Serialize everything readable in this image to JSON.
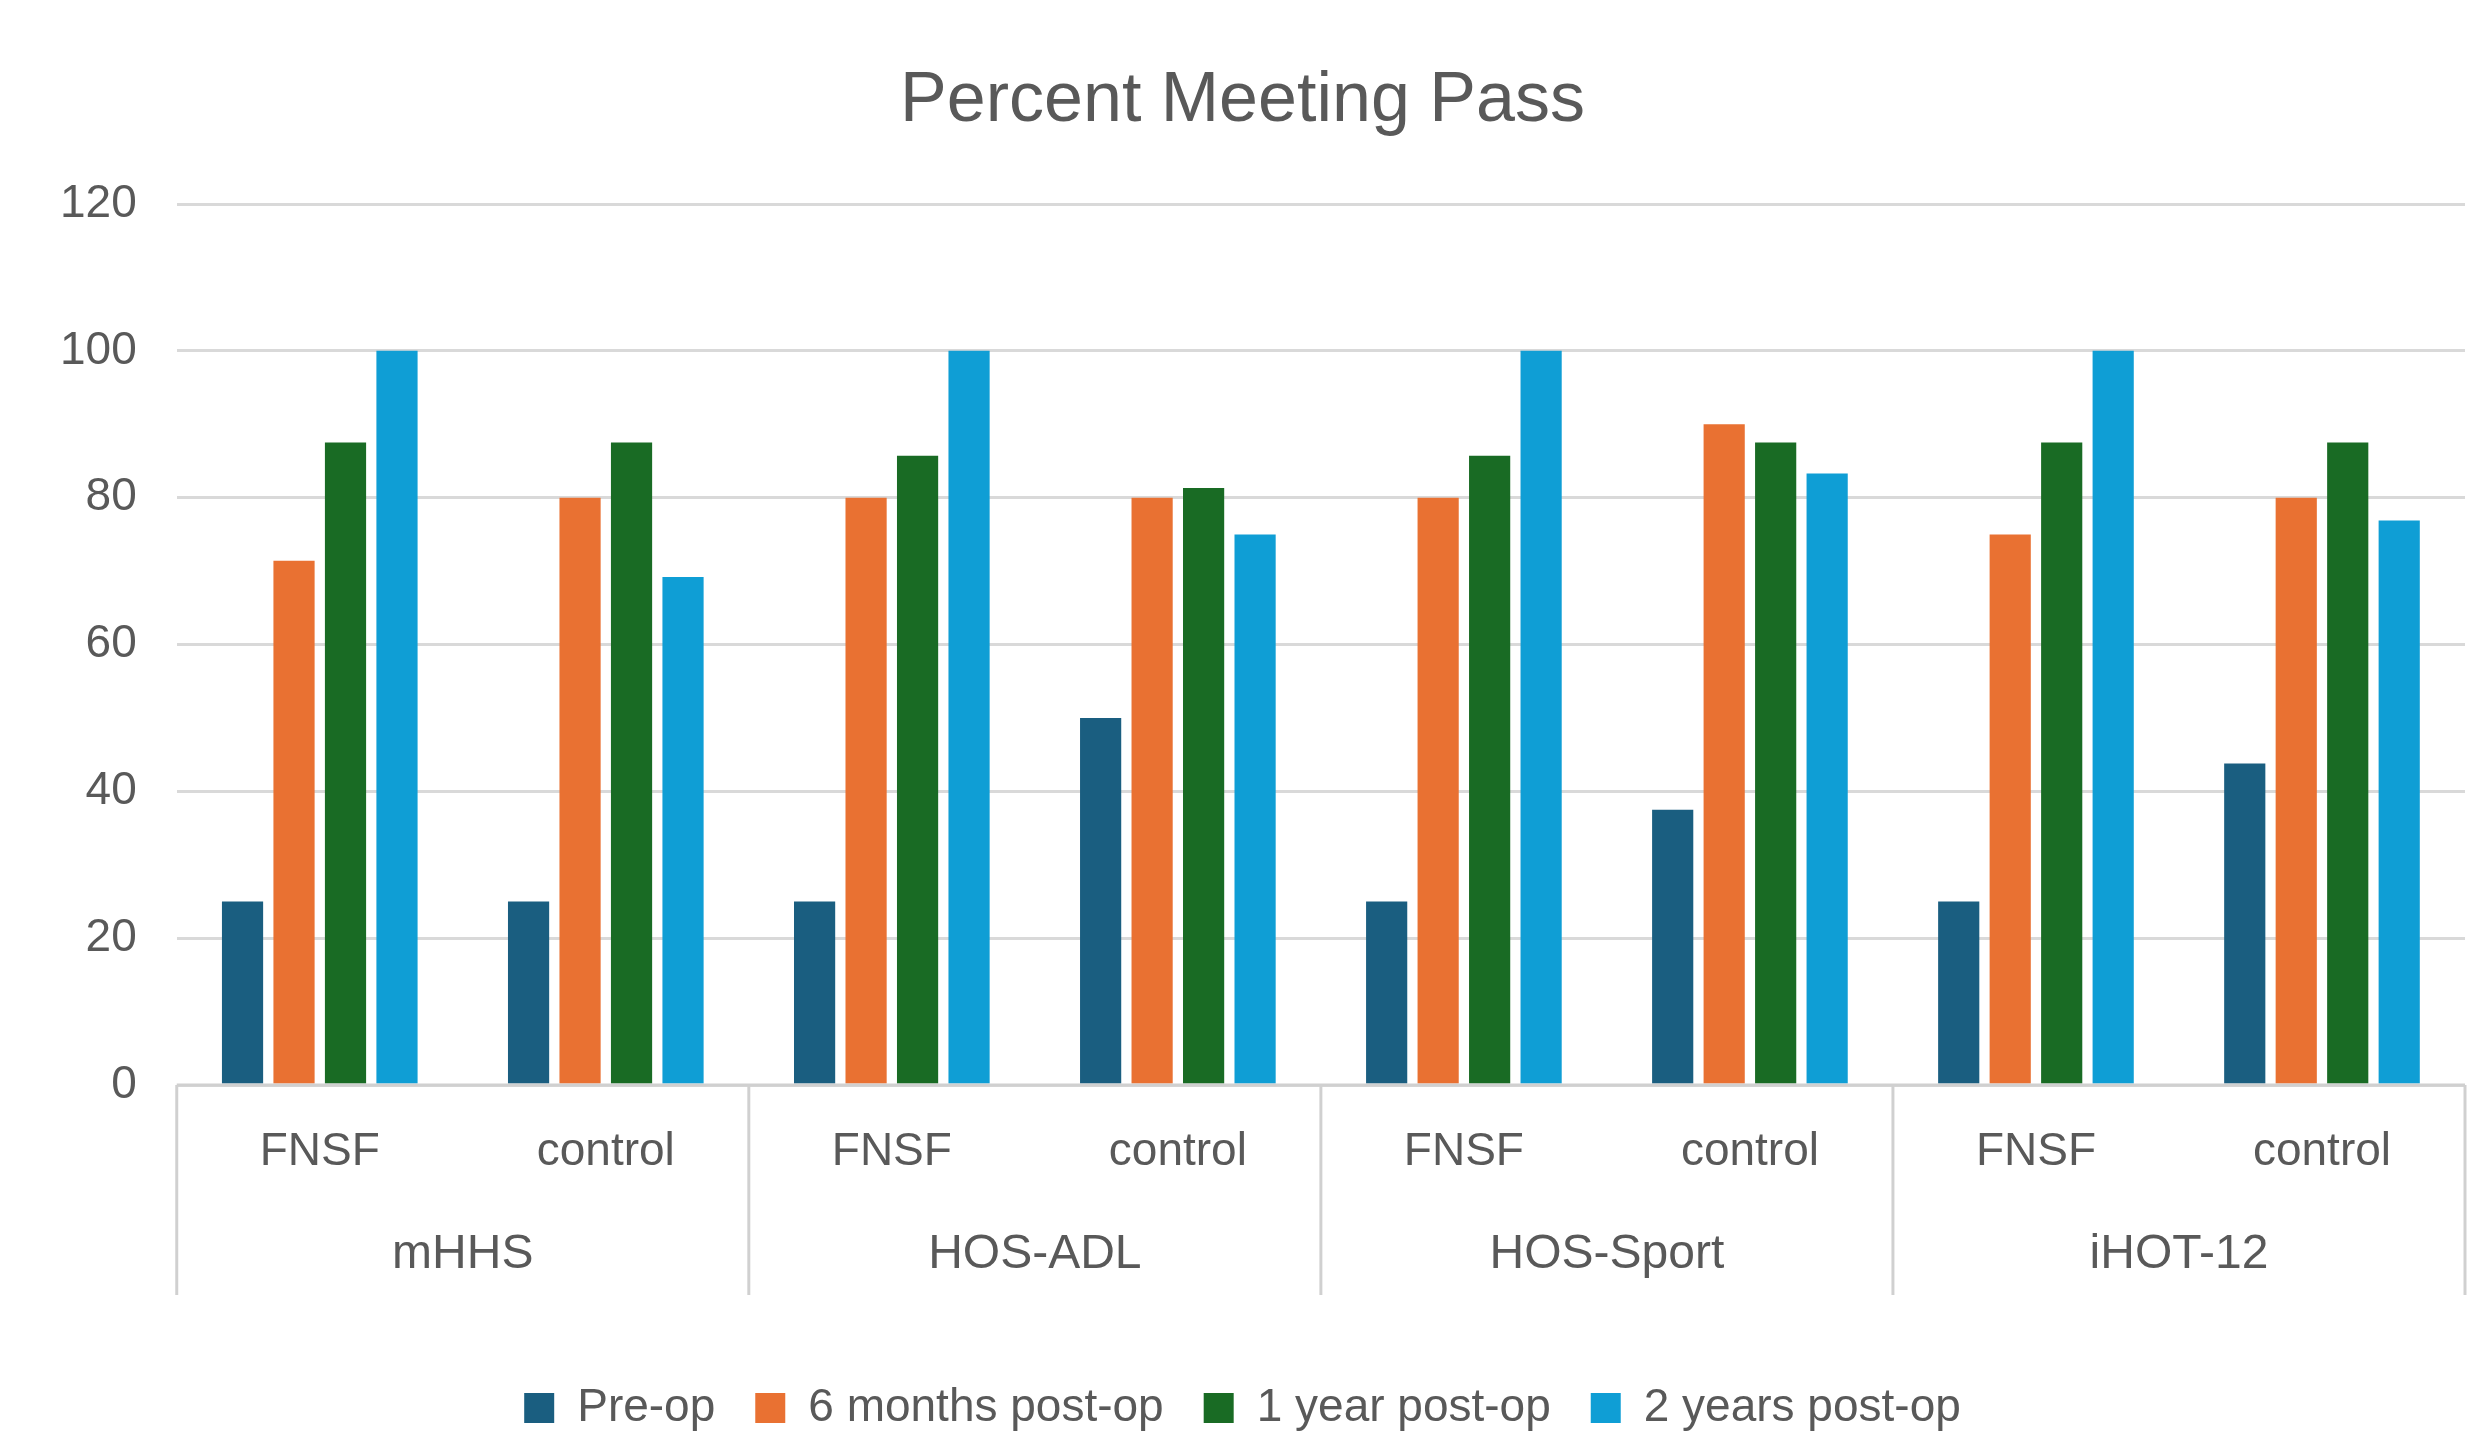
{
  "chart_data": {
    "type": "bar",
    "title": "Percent Meeting Pass",
    "categories": [
      "FNSF",
      "control",
      "FNSF",
      "control",
      "FNSF",
      "control",
      "FNSF",
      "control"
    ],
    "annotations": [
      "mHHS",
      "HOS-ADL",
      "HOS-Sport",
      "iHOT-12"
    ],
    "series": [
      {
        "name": "Pre-op",
        "color": "#1a5e80",
        "values": [
          25,
          25,
          25,
          50,
          25,
          37.5,
          25,
          43.8
        ]
      },
      {
        "name": "6 months post-op",
        "color": "#e97132",
        "values": [
          71.4,
          80,
          80,
          80,
          80,
          90,
          75,
          80
        ]
      },
      {
        "name": "1 year post-op",
        "color": "#196b24",
        "values": [
          87.5,
          87.5,
          85.7,
          81.3,
          85.7,
          87.5,
          87.5,
          87.5
        ]
      },
      {
        "name": "2 years post-op",
        "color": "#0f9ed5",
        "values": [
          100,
          69.2,
          100,
          75,
          100,
          83.3,
          100,
          76.9
        ]
      }
    ],
    "ylim": [
      0,
      120
    ],
    "yticks": [
      0,
      20,
      40,
      60,
      80,
      100,
      120
    ],
    "grid": "y",
    "legend": "bottom"
  }
}
